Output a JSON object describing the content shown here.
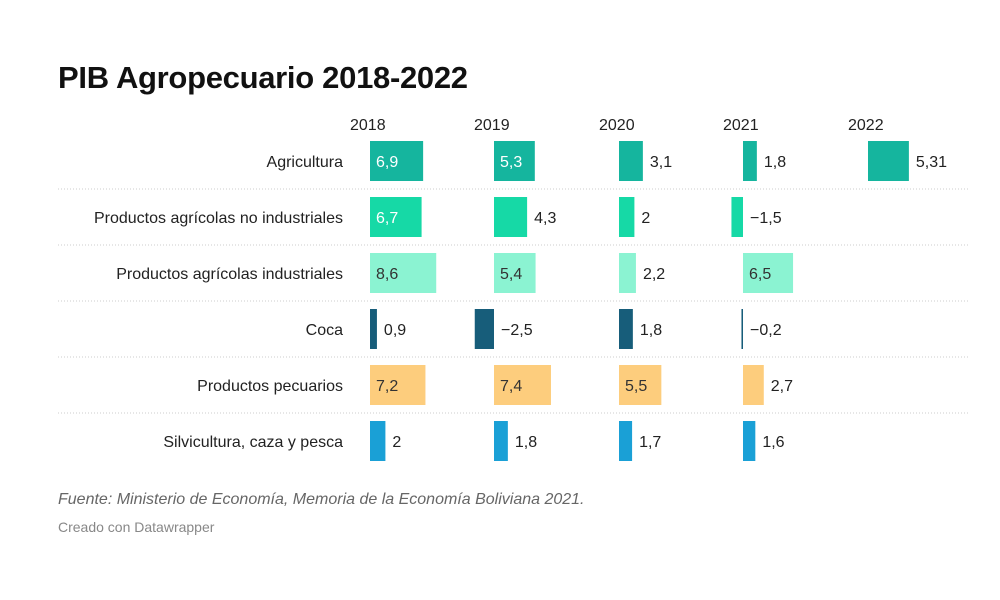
{
  "title": "PIB Agropecuario 2018-2022",
  "source": "Fuente: Ministerio de Economía, Memoria de la Economía Boliviana 2021.",
  "credit": "Creado con Datawrapper",
  "chart_data": {
    "type": "bar",
    "layout": "small-multiples",
    "columns": [
      "2018",
      "2019",
      "2020",
      "2021",
      "2022"
    ],
    "rows": [
      {
        "label": "Agricultura",
        "color": "#15b59e",
        "values": [
          6.9,
          5.3,
          3.1,
          1.8,
          5.31
        ],
        "display": [
          "6,9",
          "5,3",
          "3,1",
          "1,8",
          "5,31"
        ]
      },
      {
        "label": "Productos agrícolas no industriales",
        "color": "#16d9a6",
        "values": [
          6.7,
          4.3,
          2,
          -1.5,
          null
        ],
        "display": [
          "6,7",
          "4,3",
          "2",
          "−1,5",
          ""
        ]
      },
      {
        "label": "Productos agrícolas industriales",
        "color": "#8bf3d2",
        "values": [
          8.6,
          5.4,
          2.2,
          6.5,
          null
        ],
        "display": [
          "8,6",
          "5,4",
          "2,2",
          "6,5",
          ""
        ]
      },
      {
        "label": "Coca",
        "color": "#175d7a",
        "values": [
          0.9,
          -2.5,
          1.8,
          -0.2,
          null
        ],
        "display": [
          "0,9",
          "−2,5",
          "1,8",
          "−0,2",
          ""
        ]
      },
      {
        "label": "Productos pecuarios",
        "color": "#fdcd7d",
        "values": [
          7.2,
          7.4,
          5.5,
          2.7,
          null
        ],
        "display": [
          "7,2",
          "7,4",
          "5,5",
          "2,7",
          ""
        ]
      },
      {
        "label": "Silvicultura, caza y pesca",
        "color": "#1aa0d6",
        "values": [
          2,
          1.8,
          1.7,
          1.6,
          null
        ],
        "display": [
          "2",
          "1,8",
          "1,7",
          "1,6",
          ""
        ]
      }
    ],
    "label_colors": {
      "inside": "#ffffff",
      "inside_light": "#333333",
      "outside": "#222222"
    },
    "grid": "dotted row separators"
  }
}
